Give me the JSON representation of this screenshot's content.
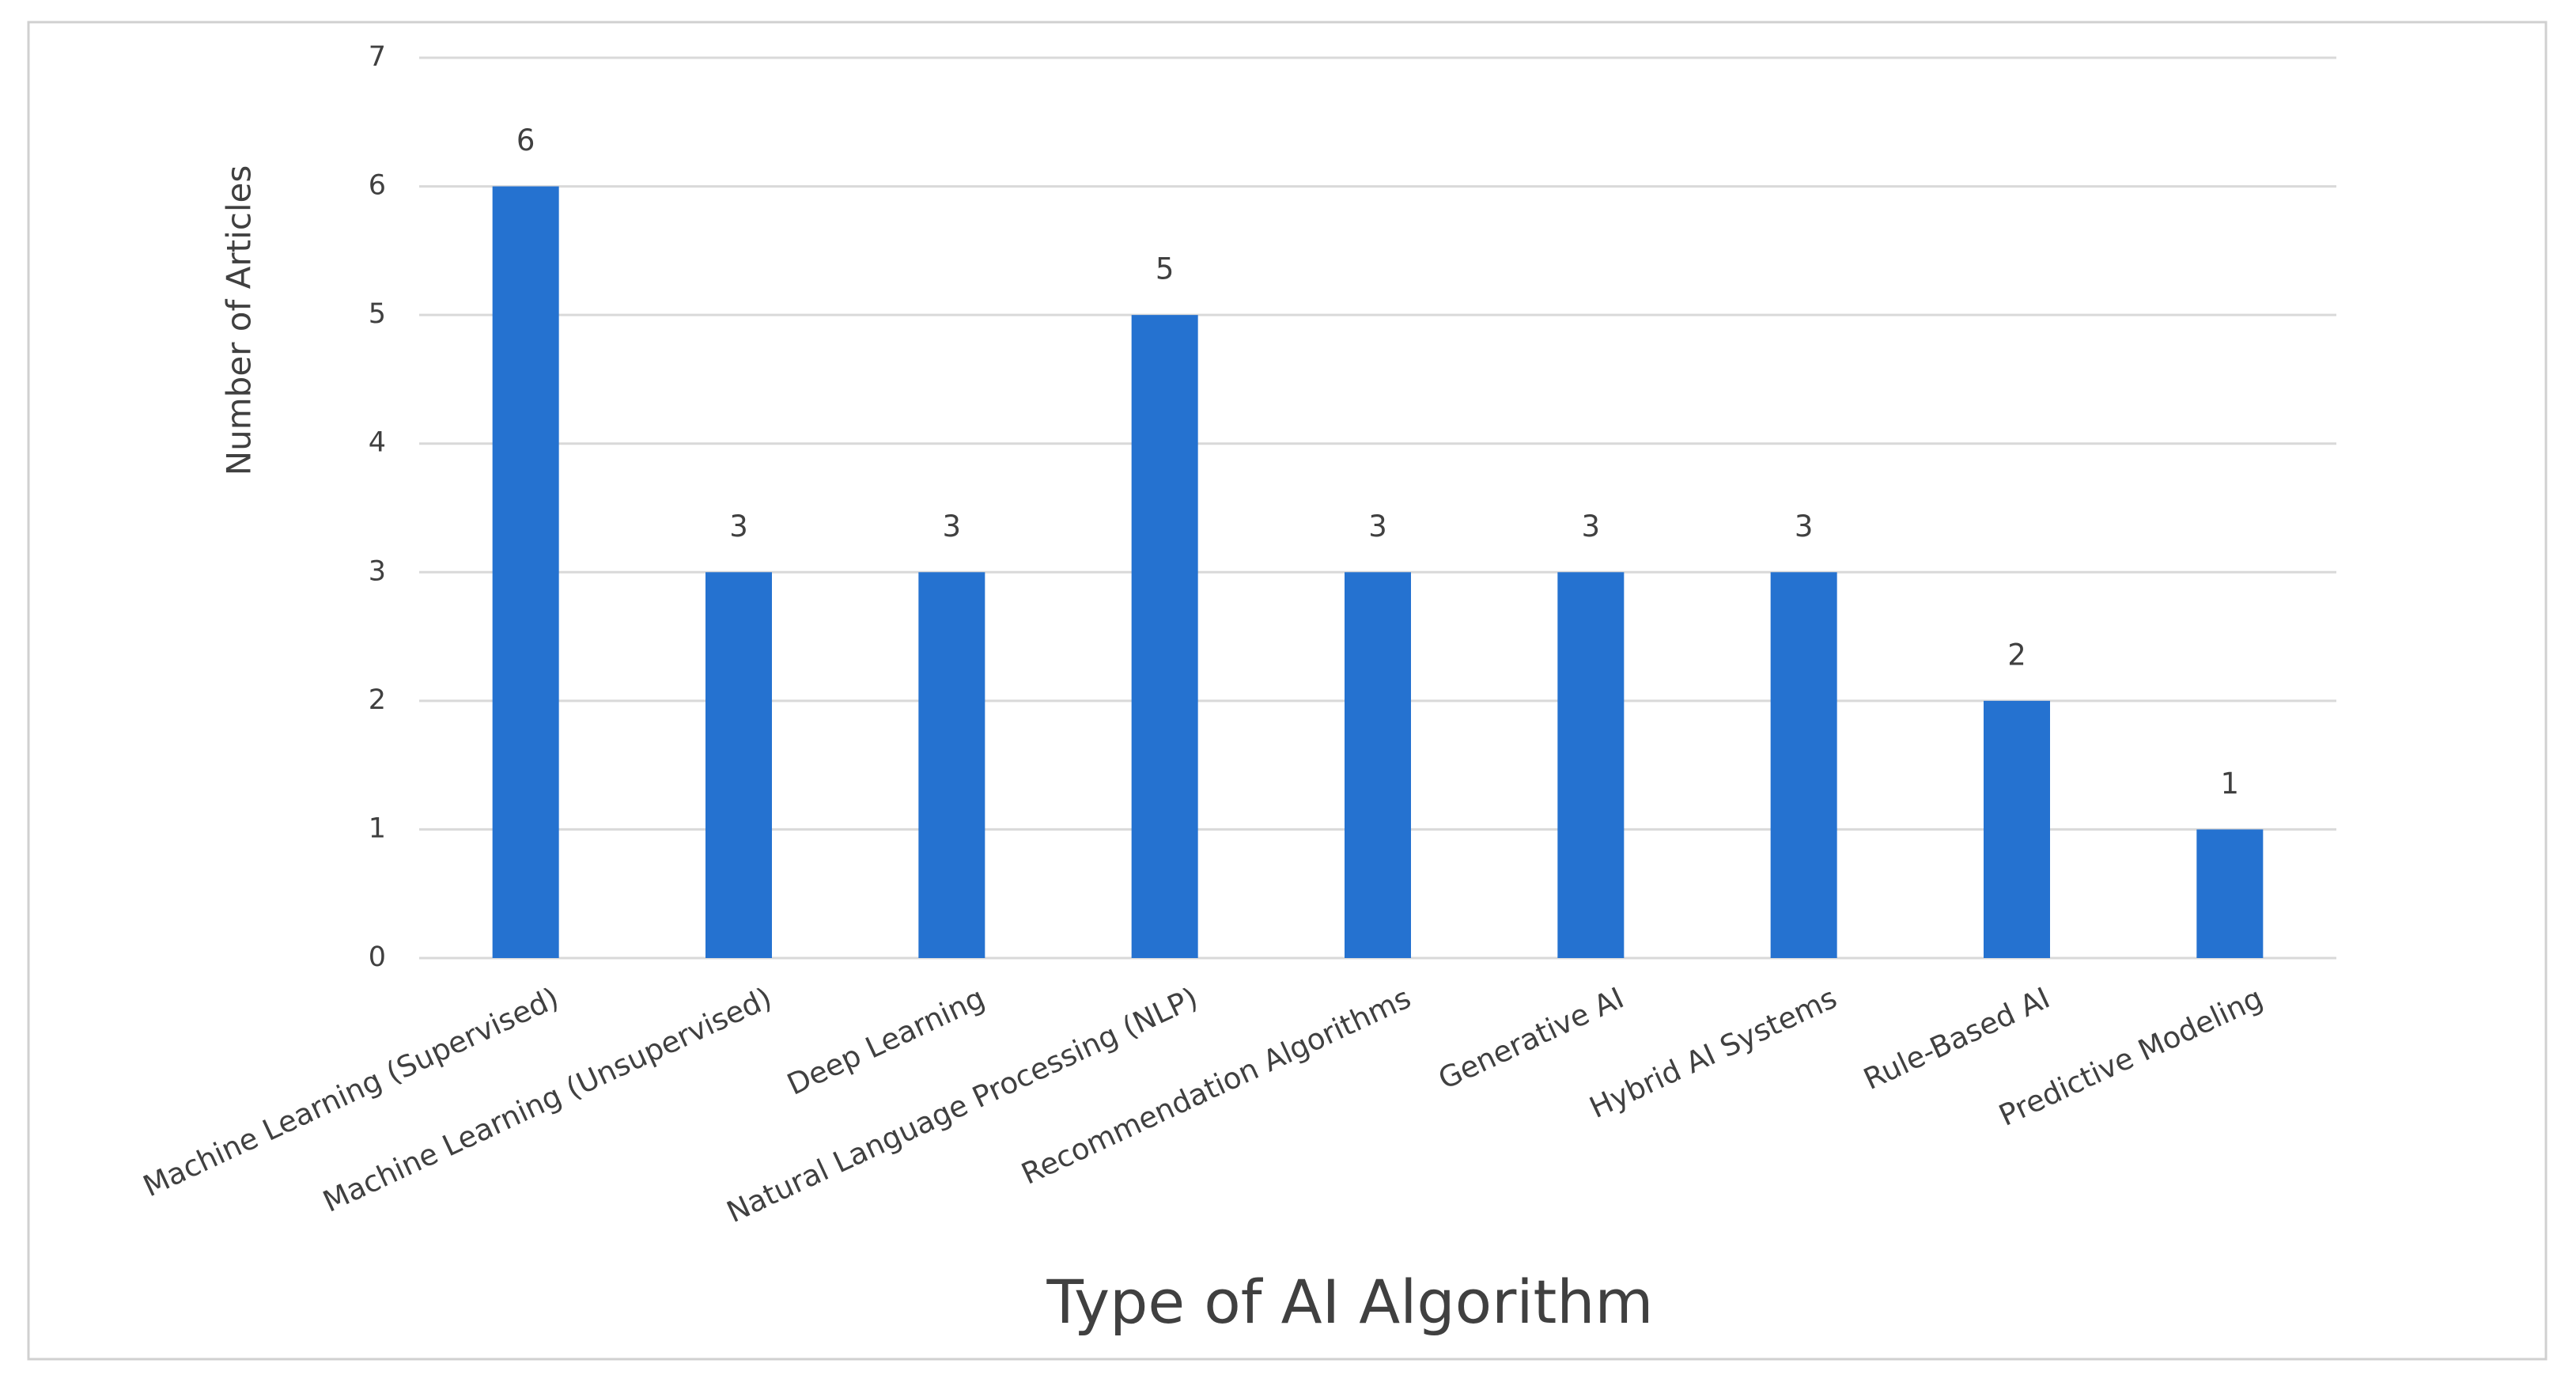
{
  "chart_data": {
    "type": "bar",
    "x_label": "Type of AI Algorithm",
    "y_label": "Number of Articles",
    "categories": [
      "Machine Learning (Supervised)",
      "Machine Learning (Unsupervised)",
      "Deep Learning",
      "Natural Language Processing (NLP)",
      "Recommendation Algorithms",
      "Generative AI",
      "Hybrid AI Systems",
      "Rule-Based AI",
      "Predictive Modeling"
    ],
    "values": [
      6,
      3,
      3,
      5,
      3,
      3,
      3,
      2,
      1
    ],
    "color": "#2572d0",
    "ylim": [
      0,
      7
    ],
    "yticks": [
      0,
      1,
      2,
      3,
      4,
      5,
      6,
      7
    ],
    "grid": true
  }
}
